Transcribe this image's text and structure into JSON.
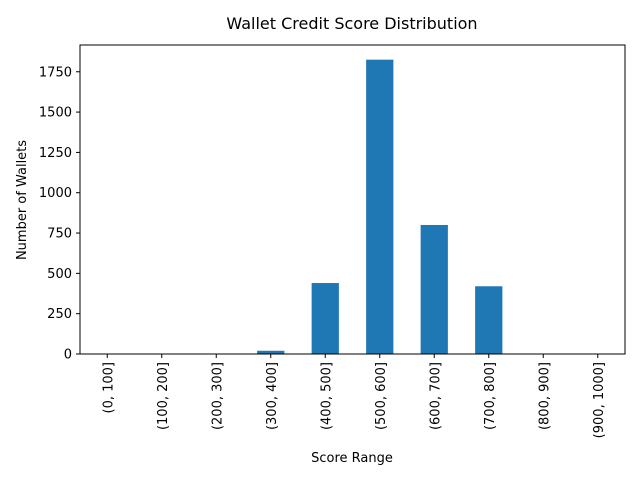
{
  "chart_data": {
    "type": "bar",
    "title": "Wallet Credit Score Distribution",
    "xlabel": "Score Range",
    "ylabel": "Number of Wallets",
    "categories": [
      "(0, 100]",
      "(100, 200]",
      "(200, 300]",
      "(300, 400]",
      "(400, 500]",
      "(500, 600]",
      "(600, 700]",
      "(700, 800]",
      "(800, 900]",
      "(900, 1000]"
    ],
    "values": [
      0,
      0,
      0,
      20,
      440,
      1825,
      800,
      420,
      0,
      0
    ],
    "ylim": [
      0,
      1916
    ],
    "yticks": [
      0,
      250,
      500,
      750,
      1000,
      1250,
      1500,
      1750
    ],
    "grid": false,
    "legend": "none",
    "bar_color": "#1f77b4"
  }
}
